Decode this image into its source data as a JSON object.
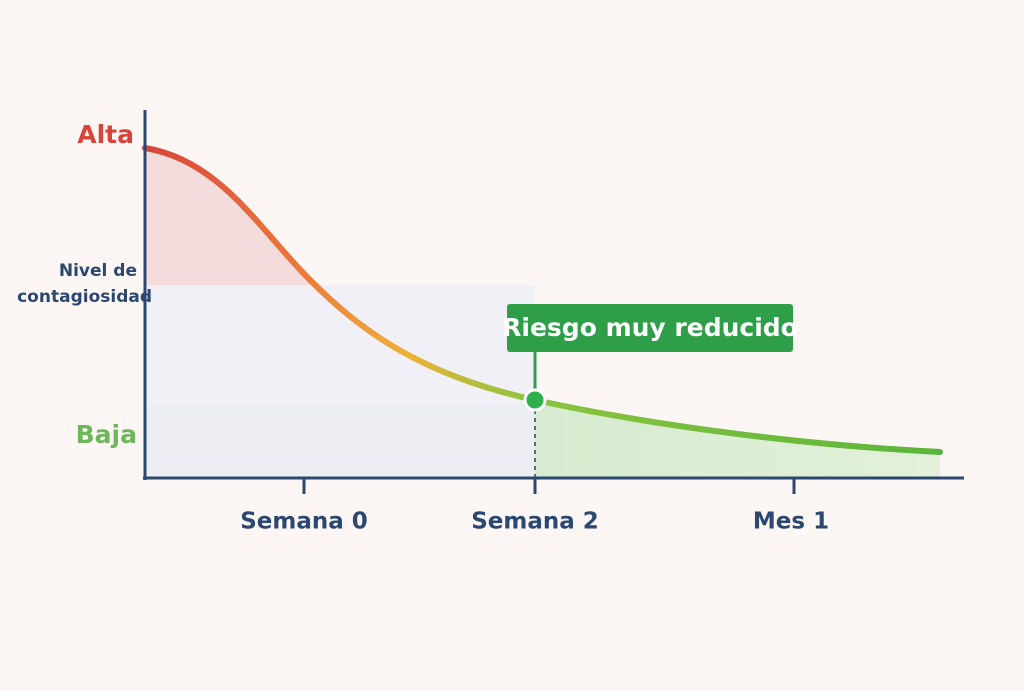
{
  "y_labels": {
    "high": "Alta",
    "axis_title_line1": "Nivel de",
    "axis_title_line2": "contagiosidad",
    "low": "Baja"
  },
  "x_labels": [
    "Semana 0",
    "Semana 2",
    "Mes 1"
  ],
  "annotation": "Riesgo muy reducido"
}
